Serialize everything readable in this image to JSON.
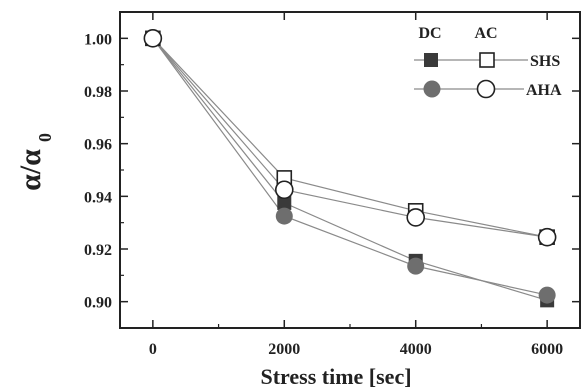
{
  "chart_data": {
    "type": "line",
    "xlabel": "Stress time [sec]",
    "ylabel": "α/α",
    "ylabel_subscript": "0",
    "xlim": [
      -500,
      6500
    ],
    "ylim": [
      0.89,
      1.01
    ],
    "xticks": [
      0,
      2000,
      4000,
      6000
    ],
    "yticks": [
      0.9,
      0.92,
      0.94,
      0.96,
      0.98,
      1.0
    ],
    "ytick_labels": [
      "0.90",
      "0.92",
      "0.94",
      "0.96",
      "0.98",
      "1.00"
    ],
    "grid": false,
    "legend_position": "top-right",
    "legend_headers": [
      "DC",
      "AC"
    ],
    "legend_rows": [
      "SHS",
      "AHA"
    ],
    "series": [
      {
        "mode": "DC",
        "group": "SHS",
        "marker": "filled-square",
        "x": [
          0,
          2000,
          4000,
          6000
        ],
        "y": [
          1.0,
          0.9375,
          0.9155,
          0.9005
        ]
      },
      {
        "mode": "DC",
        "group": "AHA",
        "marker": "filled-circle",
        "x": [
          0,
          2000,
          4000,
          6000
        ],
        "y": [
          1.0,
          0.9325,
          0.9135,
          0.9025
        ]
      },
      {
        "mode": "AC",
        "group": "SHS",
        "marker": "open-square",
        "x": [
          0,
          2000,
          4000,
          6000
        ],
        "y": [
          1.0,
          0.947,
          0.9345,
          0.9245
        ]
      },
      {
        "mode": "AC",
        "group": "AHA",
        "marker": "open-circle",
        "x": [
          0,
          2000,
          4000,
          6000
        ],
        "y": [
          1.0,
          0.9425,
          0.932,
          0.9245
        ]
      }
    ],
    "colors": {
      "filled": "#3a3a3a",
      "filled_circle": "#6e6e6e",
      "line": "#8a8a8a",
      "axis": "#222222"
    }
  }
}
